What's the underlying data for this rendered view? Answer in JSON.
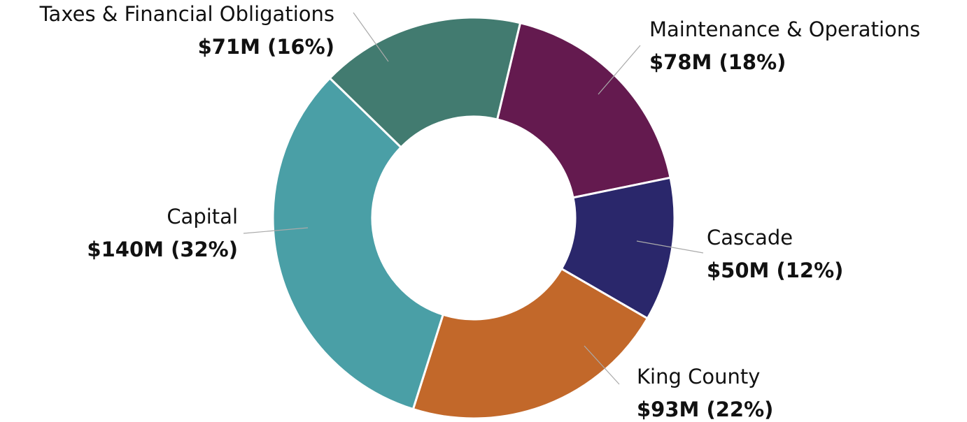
{
  "chart_data": {
    "type": "donut",
    "categories": [
      "Maintenance & Operations",
      "Cascade",
      "King County",
      "Capital",
      "Taxes & Financial Obligations"
    ],
    "values": [
      78,
      50,
      93,
      140,
      71
    ],
    "value_labels": [
      "$78M (18%)",
      "$50M (12%)",
      "$93M (22%)",
      "$140M (32%)",
      "$71M (16%)"
    ],
    "colors": [
      "#641a4f",
      "#2a276b",
      "#c2682a",
      "#4a9fa6",
      "#427b70"
    ]
  }
}
